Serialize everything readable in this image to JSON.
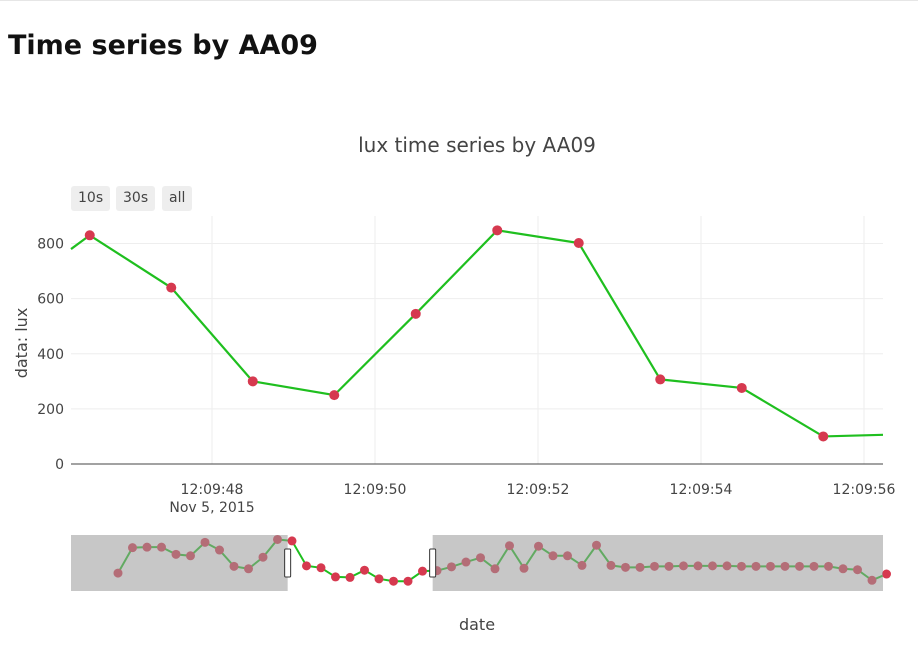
{
  "page": {
    "title": "Time series by AA09"
  },
  "range_selector": {
    "buttons": [
      "10s",
      "30s",
      "all"
    ]
  },
  "chart_data": {
    "type": "line",
    "title": "lux time series by AA09",
    "xlabel": "date",
    "ylabel": "data: lux",
    "x_ticks": [
      "12:09:48",
      "12:09:50",
      "12:09:52",
      "12:09:54",
      "12:09:56"
    ],
    "x_tick_date": "Nov 5, 2015",
    "ylim": [
      0,
      900
    ],
    "y_ticks": [
      0,
      200,
      400,
      600,
      800
    ],
    "grid": true,
    "colors": {
      "line": "#1fbf1f",
      "marker": "#d6394f",
      "rangeslider_marker": "#8b1a2e",
      "rangeslider_mask": "#999999"
    },
    "series": [
      {
        "values": [
          {
            "t": "12:09:46.200",
            "y": 780
          },
          {
            "t": "12:09:46.500",
            "y": 830
          },
          {
            "t": "12:09:47.500",
            "y": 640
          },
          {
            "t": "12:09:48.500",
            "y": 300
          },
          {
            "t": "12:09:49.500",
            "y": 250
          },
          {
            "t": "12:09:50.500",
            "y": 545
          },
          {
            "t": "12:09:51.500",
            "y": 848
          },
          {
            "t": "12:09:52.500",
            "y": 802
          },
          {
            "t": "12:09:53.500",
            "y": 307
          },
          {
            "t": "12:09:54.500",
            "y": 276
          },
          {
            "t": "12:09:55.500",
            "y": 100
          },
          {
            "t": "12:09:56.300",
            "y": 106
          }
        ]
      }
    ],
    "rangeslider": {
      "values": [
        290,
        820,
        830,
        830,
        680,
        650,
        930,
        770,
        430,
        380,
        620,
        990,
        960,
        440,
        400,
        210,
        200,
        350,
        170,
        120,
        120,
        330,
        340,
        420,
        520,
        610,
        380,
        860,
        390,
        850,
        650,
        650,
        450,
        870,
        450,
        410,
        410,
        430,
        430,
        440,
        440,
        440,
        440,
        430,
        430,
        430,
        430,
        430,
        430,
        430,
        380,
        360,
        140,
        270
      ],
      "window": {
        "start": 12,
        "end": 22
      }
    }
  }
}
